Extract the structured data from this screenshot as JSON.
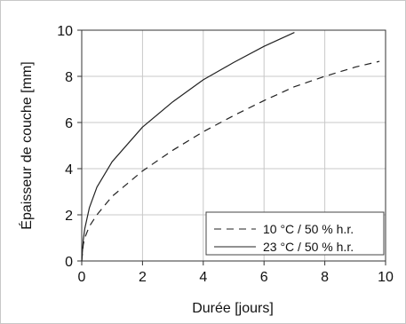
{
  "chart_data": {
    "type": "line",
    "title": "",
    "xlabel": "Durée [jours]",
    "ylabel": "Épaisseur de couche [mm]",
    "xlim": [
      0,
      10
    ],
    "ylim": [
      0,
      10
    ],
    "xticks": [
      0,
      2,
      4,
      6,
      8,
      10
    ],
    "yticks": [
      0,
      2,
      4,
      6,
      8,
      10
    ],
    "grid": true,
    "legend_position": "bottom-right",
    "series": [
      {
        "name": "10 °C / 50 % h.r.",
        "style": "dashed",
        "color": "#222222",
        "x": [
          0,
          0.05,
          0.1,
          0.25,
          0.5,
          1,
          1.5,
          2,
          3,
          4,
          5,
          6,
          7,
          8,
          9,
          9.8
        ],
        "y": [
          0,
          0.7,
          1.0,
          1.5,
          2.0,
          2.8,
          3.35,
          3.9,
          4.8,
          5.6,
          6.3,
          6.95,
          7.55,
          8.0,
          8.4,
          8.65
        ]
      },
      {
        "name": "23 °C / 50 % h.r.",
        "style": "solid",
        "color": "#222222",
        "x": [
          0,
          0.05,
          0.1,
          0.25,
          0.5,
          1,
          1.5,
          2,
          3,
          4,
          5,
          6,
          7
        ],
        "y": [
          0,
          0.9,
          1.4,
          2.3,
          3.2,
          4.3,
          5.05,
          5.8,
          6.9,
          7.85,
          8.6,
          9.3,
          9.9
        ]
      }
    ]
  }
}
